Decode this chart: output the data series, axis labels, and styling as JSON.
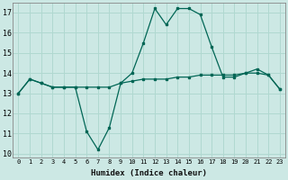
{
  "xlabel": "Humidex (Indice chaleur)",
  "bg_color": "#cce8e4",
  "grid_color": "#b0d8d0",
  "line_color": "#006655",
  "hours": [
    0,
    1,
    2,
    3,
    4,
    5,
    6,
    7,
    8,
    9,
    10,
    11,
    12,
    13,
    14,
    15,
    16,
    17,
    18,
    19,
    20,
    21,
    22,
    23
  ],
  "humidex": [
    13.0,
    13.7,
    13.5,
    13.3,
    13.3,
    13.3,
    11.1,
    10.2,
    11.3,
    13.5,
    14.0,
    15.5,
    17.2,
    16.4,
    17.2,
    17.2,
    16.9,
    15.3,
    13.8,
    13.8,
    14.0,
    14.2,
    13.9,
    13.2
  ],
  "temp": [
    13.0,
    13.7,
    13.5,
    13.3,
    13.3,
    13.3,
    13.3,
    13.3,
    13.3,
    13.5,
    13.6,
    13.7,
    13.7,
    13.7,
    13.8,
    13.8,
    13.9,
    13.9,
    13.9,
    13.9,
    14.0,
    14.0,
    13.9,
    13.2
  ],
  "ylim": [
    9.8,
    17.5
  ],
  "yticks": [
    10,
    11,
    12,
    13,
    14,
    15,
    16,
    17
  ],
  "xticks": [
    0,
    1,
    2,
    3,
    4,
    5,
    6,
    7,
    8,
    9,
    10,
    11,
    12,
    13,
    14,
    15,
    16,
    17,
    18,
    19,
    20,
    21,
    22,
    23
  ]
}
